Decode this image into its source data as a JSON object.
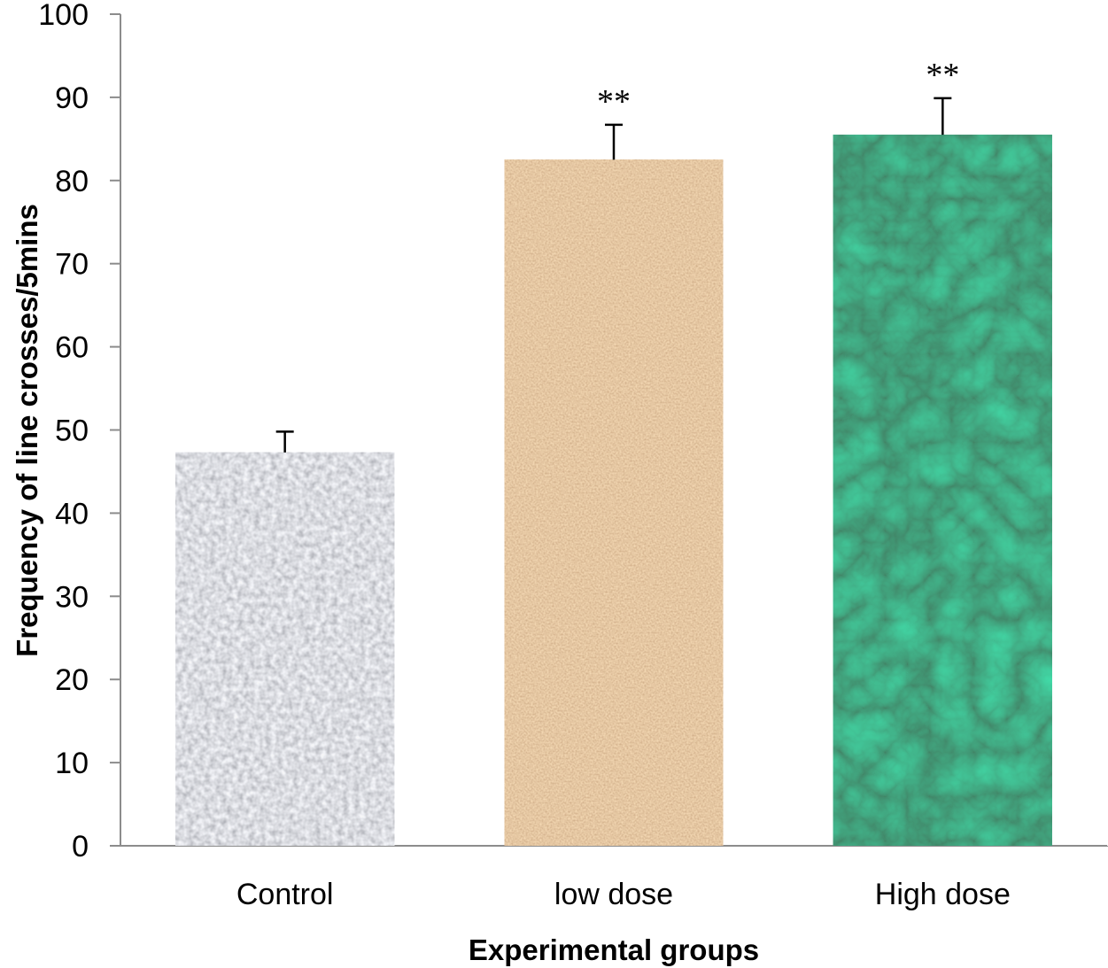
{
  "chart_data": {
    "type": "bar",
    "categories": [
      "Control",
      "low dose",
      "High dose"
    ],
    "values": [
      47.3,
      82.5,
      85.5
    ],
    "error_bars": [
      2.5,
      4.2,
      4.4
    ],
    "annotations": [
      "",
      "**",
      "**"
    ],
    "xlabel": "Experimental groups",
    "ylabel": "Frequency of line crosses/5mins",
    "ylim": [
      0,
      100
    ],
    "yticks": [
      0,
      10,
      20,
      30,
      40,
      50,
      60,
      70,
      80,
      90,
      100
    ],
    "grid": false,
    "legend": "none",
    "bar_colors": [
      "#a7a9ae",
      "#cf9a69",
      "#1e6b43"
    ]
  }
}
